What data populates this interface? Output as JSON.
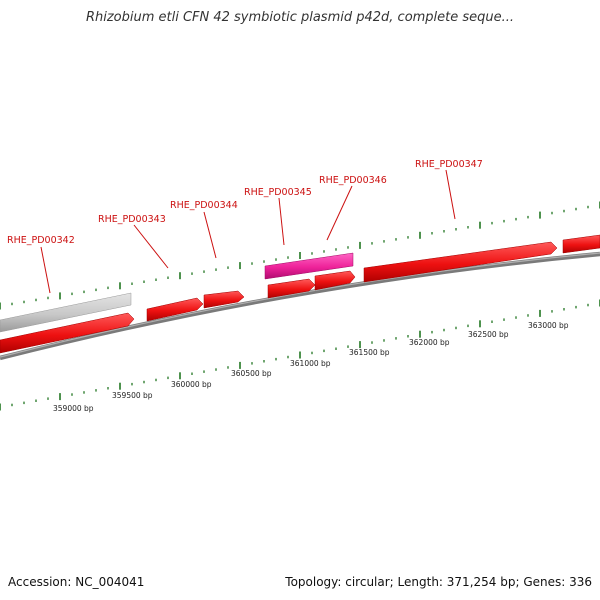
{
  "header": {
    "title": "Rhizobium etli CFN 42 symbiotic plasmid p42d, complete seque..."
  },
  "footer": {
    "accession": "Accession: NC_004041",
    "summary": "Topology: circular; Length: 371,254 bp; Genes: 336"
  },
  "colors": {
    "gene_red": "#ee1111",
    "gene_pink": "#ee2299",
    "gene_gray": "#c8c8c8",
    "backbone": "#888888",
    "tick_green": "#227722",
    "label_red": "#cc1111"
  },
  "gene_labels": [
    {
      "text": "RHE_PD00342"
    },
    {
      "text": "RHE_PD00343"
    },
    {
      "text": "RHE_PD00344"
    },
    {
      "text": "RHE_PD00345"
    },
    {
      "text": "RHE_PD00346"
    },
    {
      "text": "RHE_PD00347"
    }
  ],
  "position_labels": [
    {
      "text": "359000 bp"
    },
    {
      "text": "359500 bp"
    },
    {
      "text": "360000 bp"
    },
    {
      "text": "360500 bp"
    },
    {
      "text": "361000 bp"
    },
    {
      "text": "361500 bp"
    },
    {
      "text": "362000 bp"
    },
    {
      "text": "362500 bp"
    },
    {
      "text": "363000 bp"
    }
  ]
}
